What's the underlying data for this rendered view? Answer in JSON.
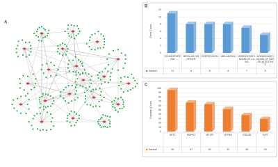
{
  "figure": {
    "panel_labels": [
      "A",
      "B",
      "C"
    ]
  },
  "chart_data": [
    {
      "type": "bar",
      "ylabel": "Gene Count",
      "categories": [
        "SCHIZOPHRENIA",
        "BIPOLAR DISORDER",
        "DEPRESSION",
        "MELANOMA",
        "ADENOCARCINOMA OF LUNG",
        "ADENOCARCINOMA OF LARGE INTESTINE"
      ],
      "series": [
        {
          "name": "Series1",
          "color": "#5b9bd5",
          "values": [
            11,
            8,
            8,
            8,
            7,
            5
          ]
        }
      ],
      "ylim": [
        0,
        12
      ],
      "yticks": [
        0,
        2,
        4,
        6,
        8,
        10,
        12
      ],
      "grid": true
    },
    {
      "type": "bar",
      "ylabel": "Diseases Count",
      "categories": [
        "AKT1",
        "MAPK3",
        "MTOR",
        "NTRK2",
        "GSK3B",
        "ATR"
      ],
      "series": [
        {
          "name": "Series1",
          "color": "#ed7d31",
          "values": [
            96,
            67,
            63,
            52,
            38,
            29
          ]
        }
      ],
      "ylim": [
        0,
        100
      ],
      "yticks": [
        0,
        10,
        20,
        30,
        40,
        50,
        60,
        70,
        80,
        90,
        100
      ],
      "grid": true
    }
  ]
}
